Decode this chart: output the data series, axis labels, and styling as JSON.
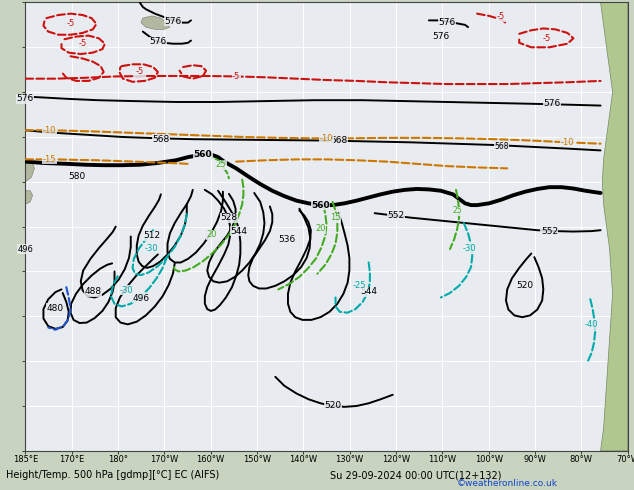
{
  "title": "Height/Temp. 500 hPa [gdmp][°C] EC (AIFS)",
  "subtitle": "Su 29-09-2024 00:00 UTC(12+132)",
  "copyright": "©weatheronline.co.uk",
  "map_bg": "#e8ecf0",
  "grid_color": "#ffffff",
  "land_color": "#c8d8b0",
  "land_green": "#a8c890",
  "land_nz": "#b0b8a8",
  "black_lw": 1.4,
  "bold_lw": 2.8,
  "colored_lw": 1.5,
  "fontsize_label": 6.5,
  "fontsize_axis": 6.0,
  "xlabel": [
    "185°E",
    "170°E",
    "180°",
    "170°W",
    "160°W",
    "150°W",
    "140°W",
    "130°W",
    "120°W",
    "110°W",
    "100°W",
    "90°W",
    "80°W",
    "70°W"
  ]
}
